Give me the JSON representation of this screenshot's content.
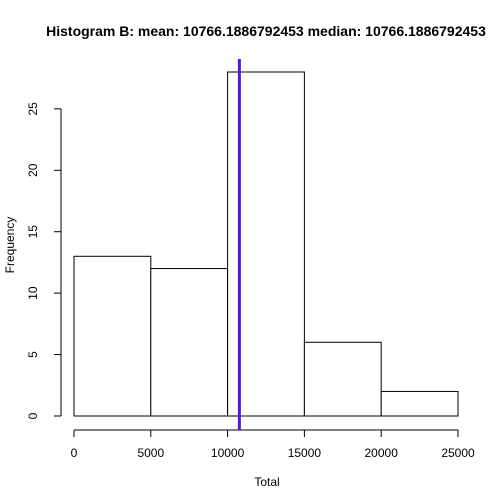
{
  "chart_data": {
    "type": "bar",
    "title": "Histogram B: mean: 10766.1886792453  median: 10766.1886792453",
    "xlabel": "Total",
    "ylabel": "Frequency",
    "bins": [
      {
        "from": 0,
        "to": 5000,
        "count": 13
      },
      {
        "from": 5000,
        "to": 10000,
        "count": 12
      },
      {
        "from": 10000,
        "to": 15000,
        "count": 28
      },
      {
        "from": 15000,
        "to": 20000,
        "count": 6
      },
      {
        "from": 20000,
        "to": 25000,
        "count": 2
      }
    ],
    "xlim": [
      0,
      25000
    ],
    "ylim": [
      0,
      28
    ],
    "x_ticks": [
      "0",
      "5000",
      "10000",
      "15000",
      "20000",
      "25000"
    ],
    "y_ticks": [
      "0",
      "5",
      "10",
      "15",
      "20",
      "25"
    ],
    "vline": {
      "x": 10766.1886792453,
      "color": "#5b14d6"
    },
    "grid": false,
    "legend": "none"
  }
}
